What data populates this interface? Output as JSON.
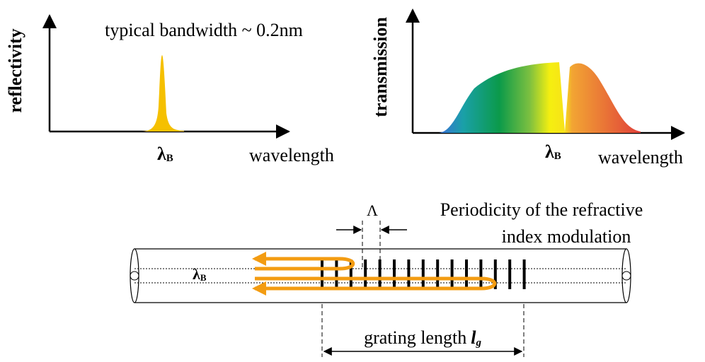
{
  "reflectivity_plot": {
    "y_label": "reflectivity",
    "annotation": "typical bandwidth ~ 0.2nm",
    "peak_label": {
      "symbol": "λ",
      "subscript": "B"
    },
    "x_label": "wavelength"
  },
  "transmission_plot": {
    "y_label": "transmission",
    "dip_label": {
      "symbol": "λ",
      "subscript": "B"
    },
    "x_label": "wavelength"
  },
  "fiber": {
    "period_symbol": "Λ",
    "period_description": [
      "Periodicity of the refractive",
      "index modulation"
    ],
    "wave_label": {
      "symbol": "λ",
      "subscript": "B"
    },
    "grating_length": {
      "text": "grating length",
      "symbol": "l",
      "subscript": "g"
    }
  }
}
